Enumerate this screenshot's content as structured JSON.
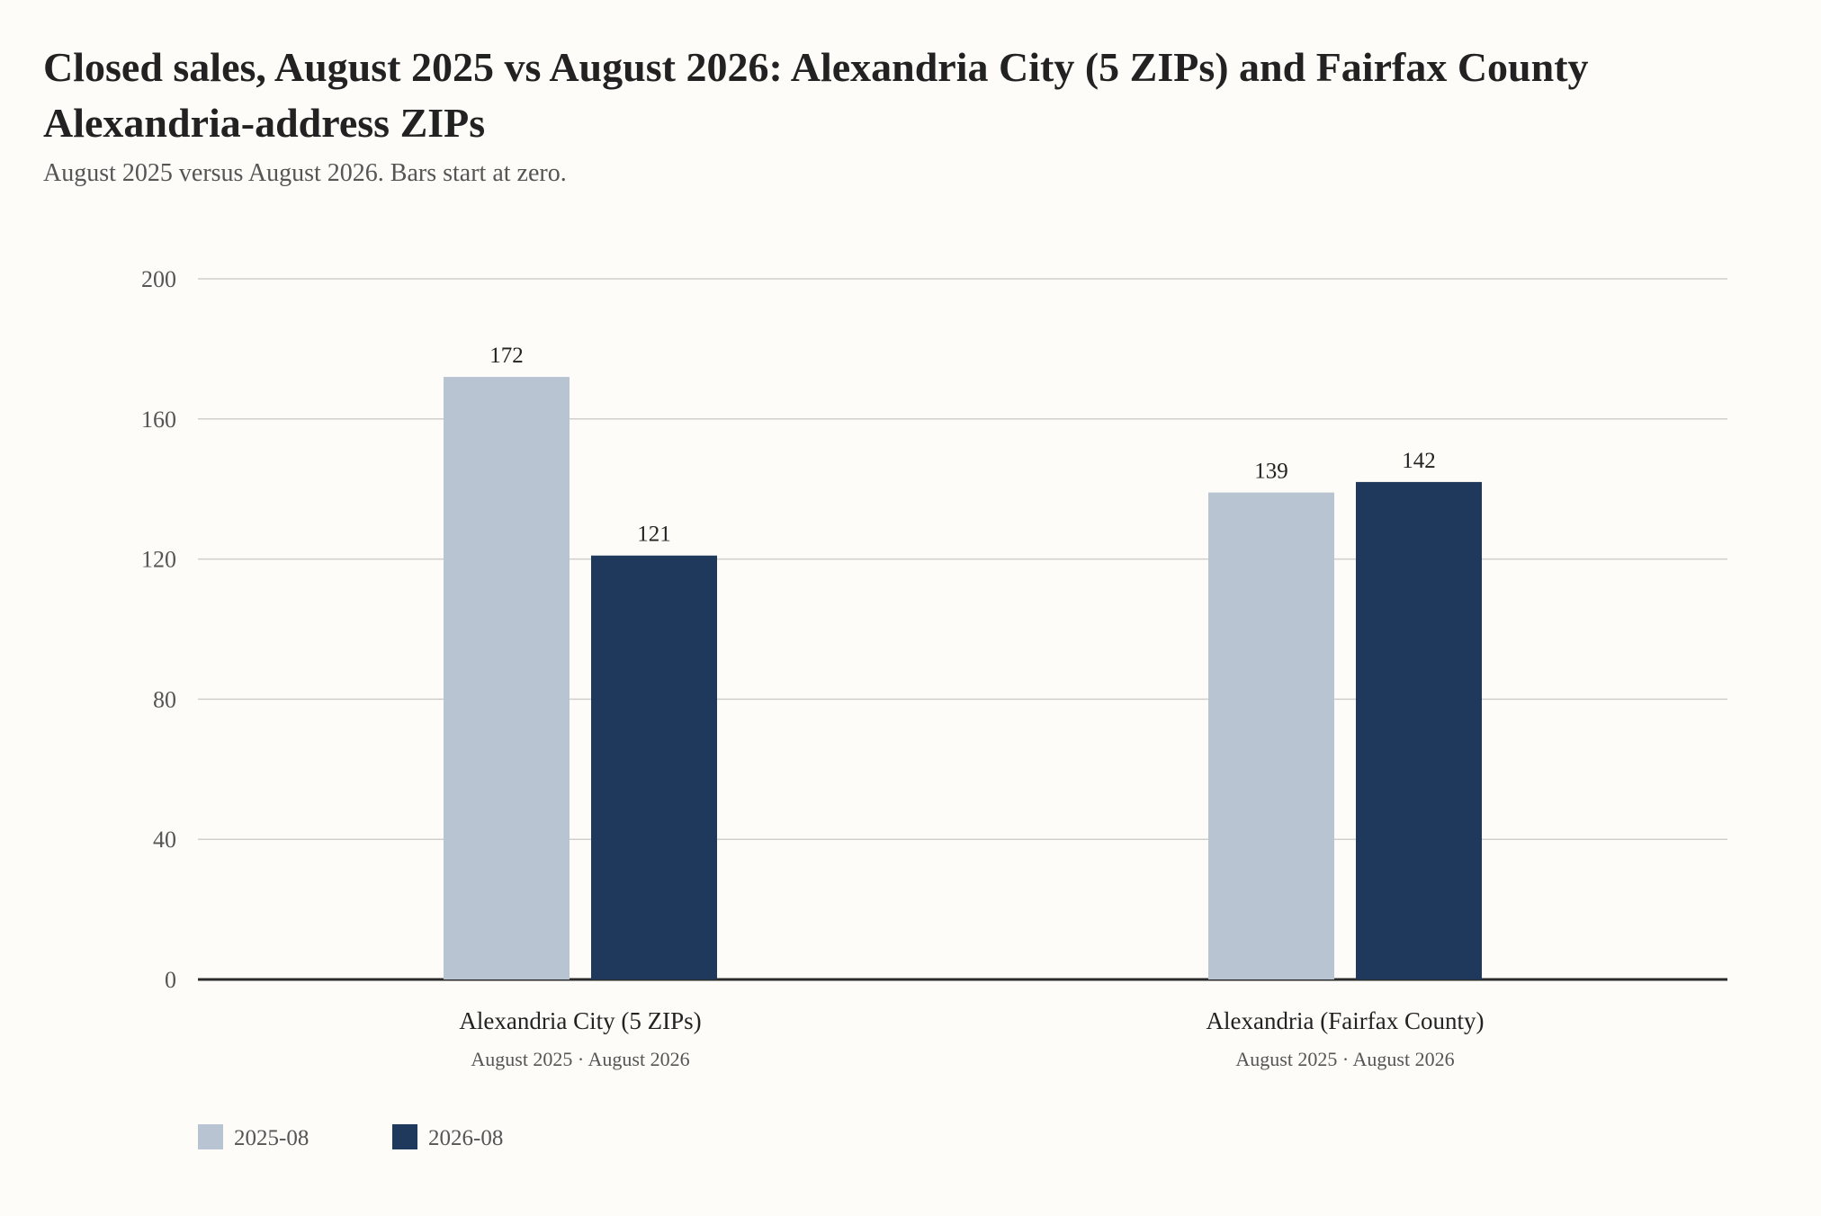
{
  "chart_data": {
    "type": "bar",
    "title": "Closed sales, August 2025 vs August 2026: Alexandria City (5 ZIPs) and Fairfax County Alexandria-address ZIPs",
    "subtitle": "August 2025 versus August 2026. Bars start at zero.",
    "categories": [
      "Alexandria City (5 ZIPs)",
      "Alexandria (Fairfax County)"
    ],
    "category_sublabels": [
      "August 2025 · August 2026",
      "August 2025 · August 2026"
    ],
    "series": [
      {
        "name": "2025-08",
        "color": "#b8c4d1",
        "values": [
          172,
          139
        ]
      },
      {
        "name": "2026-08",
        "color": "#1f395c",
        "values": [
          121,
          142
        ]
      }
    ],
    "ylim": [
      0,
      200
    ],
    "yticks": [
      0,
      40,
      80,
      120,
      160,
      200
    ],
    "grid": true,
    "legend_position": "bottom-left"
  }
}
